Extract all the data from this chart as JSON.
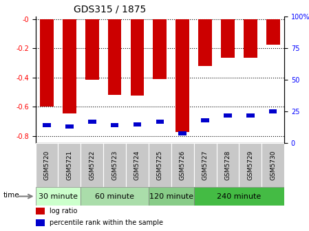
{
  "title": "GDS315 / 1875",
  "samples": [
    "GSM5720",
    "GSM5721",
    "GSM5722",
    "GSM5723",
    "GSM5724",
    "GSM5725",
    "GSM5726",
    "GSM5727",
    "GSM5728",
    "GSM5729",
    "GSM5730"
  ],
  "log_ratio": [
    -0.6,
    -0.645,
    -0.415,
    -0.52,
    -0.525,
    -0.41,
    -0.775,
    -0.32,
    -0.265,
    -0.265,
    -0.175
  ],
  "percentile_rank": [
    14,
    13,
    17,
    14,
    15,
    17,
    8,
    18,
    22,
    22,
    25
  ],
  "groups": [
    {
      "label": "30 minute",
      "start": 0,
      "end": 2,
      "color": "#ccffcc"
    },
    {
      "label": "60 minute",
      "start": 2,
      "end": 5,
      "color": "#99ee99"
    },
    {
      "label": "120 minute",
      "start": 5,
      "end": 7,
      "color": "#77dd77"
    },
    {
      "label": "240 minute",
      "start": 7,
      "end": 11,
      "color": "#55cc55"
    }
  ],
  "bar_color": "#cc0000",
  "percentile_color": "#0000cc",
  "ylim": [
    -0.85,
    0.02
  ],
  "yticks_left": [
    0.0,
    -0.2,
    -0.4,
    -0.6,
    -0.8
  ],
  "yticks_right": [
    0,
    25,
    50,
    75,
    100
  ],
  "bar_width": 0.6,
  "percentile_bar_width": 0.35,
  "background_color": "#ffffff",
  "plot_bg_color": "#ffffff",
  "grid_color": "#000000",
  "legend_log_ratio": "log ratio",
  "legend_percentile": "percentile rank within the sample",
  "title_fontsize": 10,
  "tick_fontsize": 7,
  "group_fontsize": 8,
  "group_colors": [
    "#ccffcc",
    "#aaddaa",
    "#88cc88",
    "#44bb44"
  ],
  "sample_bg_color": "#c8c8c8"
}
